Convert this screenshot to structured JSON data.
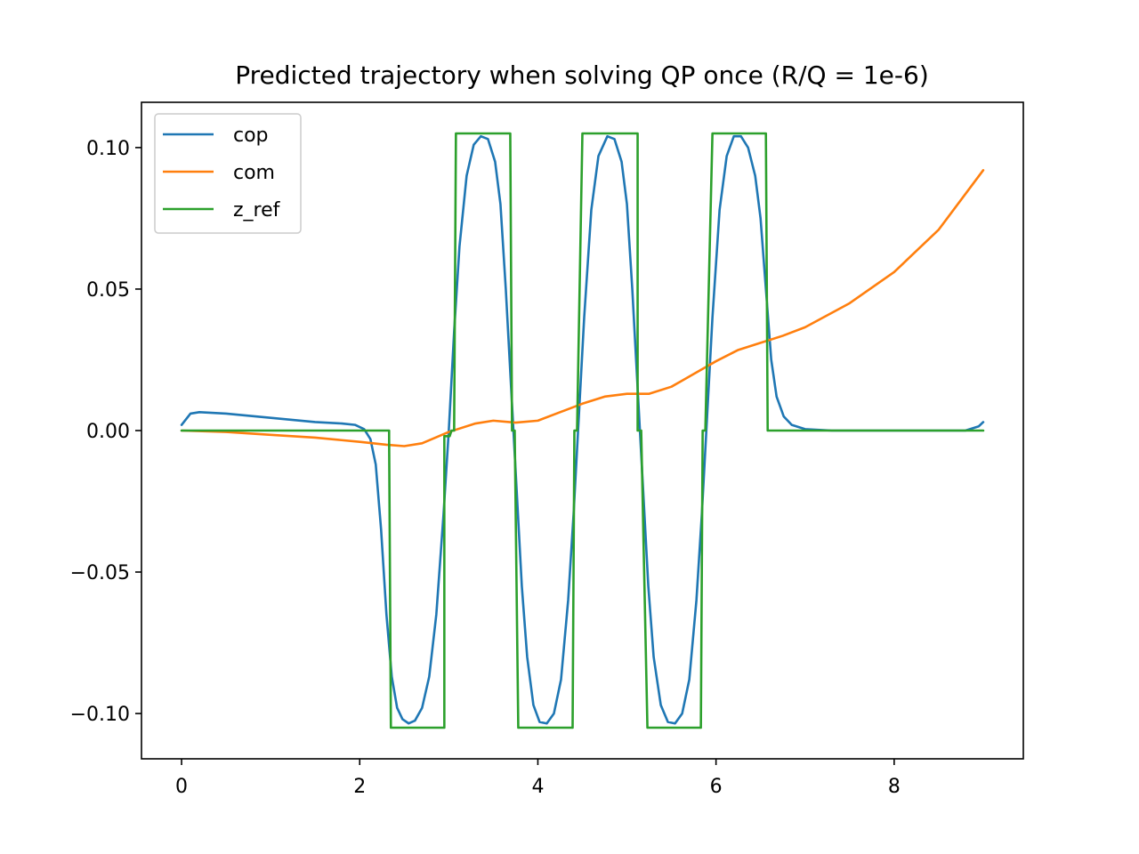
{
  "chart_data": {
    "type": "line",
    "title": "Predicted trajectory when solving QP once (R/Q = 1e-6)",
    "xlabel": "",
    "ylabel": "",
    "xlim": [
      -0.45,
      9.45
    ],
    "ylim": [
      -0.116,
      0.116
    ],
    "xticks": [
      0,
      2,
      4,
      6,
      8
    ],
    "xtick_labels": [
      "0",
      "2",
      "4",
      "6",
      "8"
    ],
    "yticks": [
      0.1,
      0.05,
      0.0,
      -0.05,
      -0.1
    ],
    "ytick_labels": [
      "0.10",
      "0.05",
      "0.00",
      "−0.05",
      "−0.10"
    ],
    "grid": false,
    "legend_position": "top-left",
    "series": [
      {
        "name": "cop",
        "color": "#1f77b4",
        "x": [
          0,
          0.1,
          0.2,
          0.5,
          1.0,
          1.5,
          1.8,
          1.95,
          2.05,
          2.12,
          2.18,
          2.24,
          2.3,
          2.36,
          2.42,
          2.48,
          2.55,
          2.62,
          2.7,
          2.78,
          2.86,
          2.94,
          3.0,
          3.06,
          3.12,
          3.2,
          3.28,
          3.36,
          3.44,
          3.52,
          3.58,
          3.64,
          3.7,
          3.76,
          3.82,
          3.88,
          3.95,
          4.02,
          4.1,
          4.18,
          4.26,
          4.34,
          4.4,
          4.46,
          4.52,
          4.6,
          4.68,
          4.78,
          4.86,
          4.94,
          5.0,
          5.06,
          5.12,
          5.18,
          5.24,
          5.3,
          5.38,
          5.46,
          5.54,
          5.62,
          5.7,
          5.78,
          5.84,
          5.9,
          5.96,
          6.04,
          6.12,
          6.2,
          6.28,
          6.36,
          6.44,
          6.5,
          6.56,
          6.62,
          6.68,
          6.76,
          6.85,
          7.0,
          7.3,
          8.0,
          8.8,
          8.95,
          9.0
        ],
        "y": [
          0.002,
          0.006,
          0.0065,
          0.006,
          0.0045,
          0.003,
          0.0025,
          0.002,
          0.0005,
          -0.003,
          -0.012,
          -0.035,
          -0.065,
          -0.087,
          -0.098,
          -0.102,
          -0.1035,
          -0.1025,
          -0.098,
          -0.087,
          -0.065,
          -0.03,
          0.0,
          0.035,
          0.065,
          0.09,
          0.101,
          0.104,
          0.103,
          0.095,
          0.08,
          0.05,
          0.015,
          -0.02,
          -0.055,
          -0.08,
          -0.097,
          -0.103,
          -0.1035,
          -0.1,
          -0.088,
          -0.06,
          -0.03,
          0.005,
          0.04,
          0.078,
          0.097,
          0.104,
          0.103,
          0.095,
          0.08,
          0.05,
          0.015,
          -0.02,
          -0.055,
          -0.08,
          -0.097,
          -0.103,
          -0.1035,
          -0.1,
          -0.088,
          -0.06,
          -0.03,
          0.005,
          0.04,
          0.078,
          0.097,
          0.104,
          0.104,
          0.1,
          0.09,
          0.075,
          0.05,
          0.025,
          0.012,
          0.005,
          0.002,
          0.0005,
          0.0,
          0.0,
          0.0,
          0.0015,
          0.003
        ]
      },
      {
        "name": "com",
        "color": "#ff7f0e",
        "x": [
          0,
          0.5,
          1.0,
          1.5,
          2.0,
          2.3,
          2.5,
          2.7,
          3.0,
          3.3,
          3.5,
          3.75,
          4.0,
          4.25,
          4.5,
          4.75,
          5.0,
          5.25,
          5.5,
          5.75,
          6.0,
          6.25,
          6.5,
          6.75,
          7.0,
          7.5,
          8.0,
          8.5,
          9.0
        ],
        "y": [
          0.0,
          -0.0005,
          -0.0015,
          -0.0025,
          -0.004,
          -0.005,
          -0.0055,
          -0.0045,
          -0.0005,
          0.0025,
          0.0035,
          0.0028,
          0.0035,
          0.0065,
          0.0095,
          0.012,
          0.013,
          0.013,
          0.0155,
          0.02,
          0.0245,
          0.0285,
          0.031,
          0.0335,
          0.0365,
          0.045,
          0.056,
          0.071,
          0.092
        ]
      },
      {
        "name": "z_ref",
        "color": "#2ca02c",
        "x": [
          0,
          2.33,
          2.33,
          2.35,
          2.95,
          2.95,
          3.01,
          3.03,
          3.06,
          3.08,
          3.69,
          3.71,
          3.74,
          3.78,
          4.39,
          4.41,
          4.44,
          4.5,
          5.12,
          5.12,
          5.16,
          5.23,
          5.83,
          5.85,
          5.88,
          5.96,
          6.56,
          6.58,
          6.6,
          9.0
        ],
        "y": [
          0.0,
          0.0,
          -0.002,
          -0.105,
          -0.105,
          -0.002,
          -0.002,
          0.0,
          0.0,
          0.105,
          0.105,
          0.0,
          0.0,
          -0.105,
          -0.105,
          0.0,
          0.0,
          0.105,
          0.105,
          0.0,
          0.0,
          -0.105,
          -0.105,
          0.0,
          0.0,
          0.105,
          0.105,
          0.0,
          0.0,
          0.0
        ]
      }
    ]
  }
}
